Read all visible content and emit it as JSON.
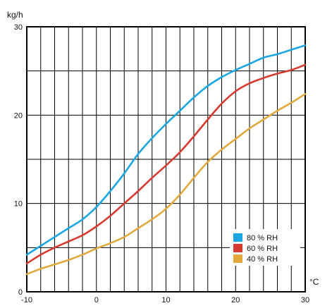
{
  "chart_data": {
    "type": "line",
    "title": "",
    "ylabel": "kg/h",
    "xlabel": "°C",
    "xlim": [
      -10,
      30
    ],
    "ylim": [
      0,
      30
    ],
    "x_ticks": [
      -10,
      0,
      10,
      20,
      30
    ],
    "y_ticks": [
      0,
      10,
      20,
      30
    ],
    "x_tick_labels": [
      "-10",
      "0",
      "10",
      "20",
      "30"
    ],
    "y_tick_labels": [
      "0",
      "10",
      "20",
      "30"
    ],
    "grid": true,
    "legend_position": "bottom-right",
    "series": [
      {
        "name": "80 % RH",
        "color": "#1aa6e0",
        "x": [
          -10,
          -8,
          -6,
          -4,
          -2,
          0,
          2,
          4,
          6,
          8,
          10,
          12,
          14,
          16,
          18,
          20,
          22,
          24,
          26,
          28,
          30
        ],
        "y": [
          4.2,
          5.2,
          6.2,
          7.2,
          8.2,
          9.6,
          11.4,
          13.4,
          15.6,
          17.4,
          19.0,
          20.5,
          22.0,
          23.3,
          24.3,
          25.1,
          25.8,
          26.5,
          26.9,
          27.4,
          27.9
        ]
      },
      {
        "name": "60 % RH",
        "color": "#d63b30",
        "x": [
          -10,
          -8,
          -6,
          -4,
          -2,
          0,
          2,
          4,
          6,
          8,
          10,
          12,
          14,
          16,
          18,
          20,
          22,
          24,
          26,
          28,
          30
        ],
        "y": [
          3.2,
          4.2,
          5.0,
          5.7,
          6.4,
          7.4,
          8.6,
          10.0,
          11.4,
          12.9,
          14.3,
          15.8,
          17.6,
          19.5,
          21.3,
          22.7,
          23.6,
          24.2,
          24.7,
          25.1,
          25.7
        ]
      },
      {
        "name": "40 % RH",
        "color": "#e2a93c",
        "x": [
          -10,
          -8,
          -6,
          -4,
          -2,
          0,
          2,
          4,
          6,
          8,
          10,
          12,
          14,
          16,
          18,
          20,
          22,
          24,
          26,
          28,
          30
        ],
        "y": [
          2.0,
          2.6,
          3.1,
          3.6,
          4.2,
          4.9,
          5.5,
          6.2,
          7.2,
          8.2,
          9.4,
          11.0,
          12.9,
          14.7,
          16.1,
          17.3,
          18.5,
          19.5,
          20.5,
          21.4,
          22.4
        ]
      }
    ]
  }
}
